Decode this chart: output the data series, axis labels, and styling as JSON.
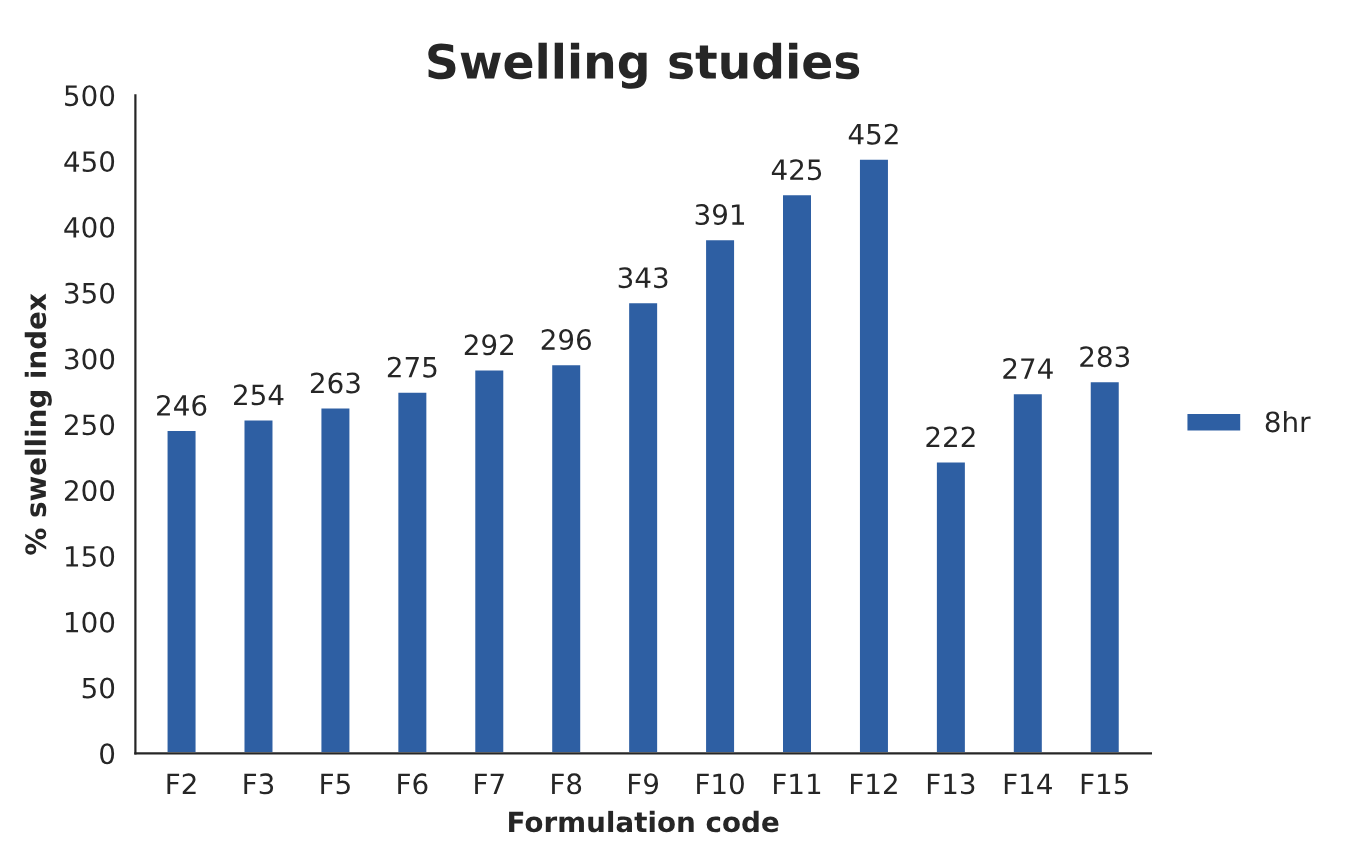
{
  "chart_data": {
    "type": "bar",
    "title": "Swelling studies",
    "xlabel": "Formulation code",
    "ylabel": "% swelling index",
    "categories": [
      "F2",
      "F3",
      "F5",
      "F6",
      "F7",
      "F8",
      "F9",
      "F10",
      "F11",
      "F12",
      "F13",
      "F14",
      "F15"
    ],
    "series": [
      {
        "name": "8hr",
        "color": "#2e5fa3",
        "values": [
          246,
          254,
          263,
          275,
          292,
          296,
          343,
          391,
          425,
          452,
          222,
          274,
          283
        ]
      }
    ],
    "ylim": [
      0,
      500
    ],
    "yticks": [
      0,
      50,
      100,
      150,
      200,
      250,
      300,
      350,
      400,
      450,
      500
    ],
    "data_labels": true,
    "legend": "right",
    "grid": false
  }
}
